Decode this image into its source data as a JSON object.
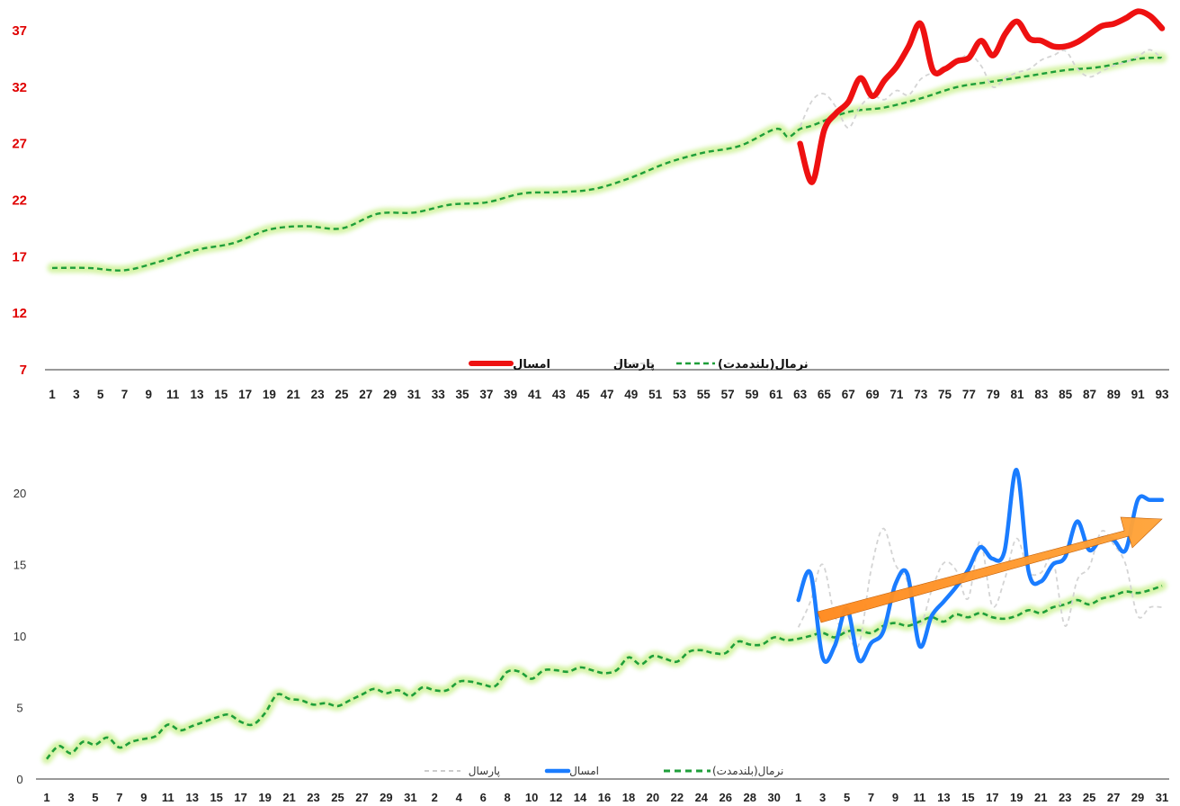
{
  "chart_data": [
    {
      "type": "line",
      "ylim": [
        7,
        37
      ],
      "yticks": [
        "7",
        "12",
        "17",
        "22",
        "27",
        "32",
        "37"
      ],
      "x_tick_labels": [
        "1",
        "3",
        "5",
        "7",
        "9",
        "11",
        "13",
        "15",
        "17",
        "19",
        "21",
        "23",
        "25",
        "27",
        "29",
        "31",
        "33",
        "35",
        "37",
        "39",
        "41",
        "43",
        "45",
        "47",
        "49",
        "51",
        "53",
        "55",
        "57",
        "59",
        "61",
        "63",
        "65",
        "67",
        "69",
        "71",
        "73",
        "75",
        "77",
        "79",
        "81",
        "83",
        "85",
        "87",
        "89",
        "91",
        "93"
      ],
      "legend_position": "bottom-center",
      "series": [
        {
          "name": "نرمال(بلندمدت)",
          "color": "#1e9e3a",
          "style": "dashed-glow",
          "x": [
            1,
            4,
            7,
            10,
            13,
            16,
            19,
            22,
            25,
            28,
            31,
            34,
            37,
            40,
            43,
            46,
            49,
            52,
            55,
            58,
            61,
            62,
            63,
            64,
            67,
            70,
            73,
            76,
            79,
            82,
            85,
            88,
            91,
            93
          ],
          "values": [
            16.0,
            16.0,
            15.8,
            16.6,
            17.6,
            18.2,
            19.4,
            19.7,
            19.5,
            20.8,
            20.9,
            21.6,
            21.8,
            22.6,
            22.7,
            23.0,
            24.0,
            25.3,
            26.2,
            26.8,
            28.3,
            27.6,
            28.3,
            28.6,
            29.8,
            30.2,
            31.0,
            32.0,
            32.5,
            33.0,
            33.5,
            33.8,
            34.5,
            34.6
          ]
        },
        {
          "name": "پارسال",
          "color": "#d4d4d4",
          "style": "dashed",
          "x": [
            63,
            64,
            65,
            66,
            67,
            68,
            69,
            70,
            71,
            72,
            73,
            74,
            75,
            76,
            77,
            78,
            79,
            80,
            81,
            82,
            83,
            84,
            85,
            86,
            87,
            88,
            89,
            90,
            91,
            92,
            93
          ],
          "values": [
            28.5,
            30.8,
            31.4,
            30.2,
            28.4,
            30.3,
            31.2,
            30.9,
            31.7,
            31.3,
            32.7,
            33.3,
            33.8,
            34.2,
            34.9,
            33.9,
            32.0,
            32.8,
            33.3,
            33.6,
            34.4,
            34.8,
            35.2,
            33.6,
            32.9,
            33.4,
            33.9,
            34.2,
            34.7,
            35.3,
            34.5
          ]
        },
        {
          "name": "امسال",
          "color": "#ee1111",
          "style": "solid-thick",
          "x": [
            63,
            64,
            65,
            66,
            67,
            68,
            69,
            70,
            71,
            72,
            73,
            74,
            75,
            76,
            77,
            78,
            79,
            80,
            81,
            82,
            83,
            84,
            85,
            86,
            87,
            88,
            89,
            90,
            91,
            92,
            93
          ],
          "values": [
            27.0,
            23.6,
            28.2,
            29.7,
            30.7,
            32.8,
            31.2,
            32.6,
            33.8,
            35.6,
            37.6,
            33.5,
            33.6,
            34.3,
            34.6,
            36.1,
            34.8,
            36.7,
            37.8,
            36.3,
            36.1,
            35.6,
            35.6,
            36.0,
            36.7,
            37.4,
            37.6,
            38.1,
            38.7,
            38.3,
            37.2
          ]
        }
      ]
    },
    {
      "type": "line",
      "ylim": [
        0,
        22
      ],
      "yticks": [
        "0",
        "5",
        "10",
        "15",
        "20"
      ],
      "x_tick_labels": [
        "1",
        "3",
        "5",
        "7",
        "9",
        "11",
        "13",
        "15",
        "17",
        "19",
        "21",
        "23",
        "25",
        "27",
        "29",
        "31",
        "2",
        "4",
        "6",
        "8",
        "10",
        "12",
        "14",
        "16",
        "18",
        "20",
        "22",
        "24",
        "26",
        "28",
        "30",
        "1",
        "3",
        "5",
        "7",
        "9",
        "11",
        "13",
        "15",
        "17",
        "19",
        "21",
        "23",
        "25",
        "27",
        "29",
        "31"
      ],
      "legend_position": "bottom-center",
      "annotation": "orange upward trend arrow over امسال series",
      "series": [
        {
          "name": "نرمال(بلندمدت)",
          "color": "#1e9e3a",
          "style": "dashed-glow",
          "x": [
            1,
            2,
            3,
            4,
            5,
            6,
            7,
            8,
            9,
            10,
            11,
            12,
            13,
            14,
            15,
            16,
            17,
            18,
            19,
            20,
            21,
            22,
            23,
            24,
            25,
            26,
            27,
            28,
            29,
            30,
            31,
            32,
            33,
            34,
            35,
            36,
            37,
            38,
            39,
            40,
            41,
            42,
            43,
            44,
            45,
            46,
            47,
            48,
            49,
            50,
            51,
            52,
            53,
            54,
            55,
            56,
            57,
            58,
            59,
            60,
            61,
            62,
            63,
            64,
            65,
            66,
            67,
            68,
            69,
            70,
            71,
            72,
            73,
            74,
            75,
            76,
            77,
            78,
            79,
            80,
            81,
            82,
            83,
            84,
            85,
            86,
            87,
            88,
            89,
            90,
            91,
            92,
            93
          ],
          "values": [
            1.4,
            2.3,
            1.8,
            2.6,
            2.4,
            2.9,
            2.2,
            2.6,
            2.8,
            3.0,
            3.8,
            3.4,
            3.7,
            4.0,
            4.3,
            4.5,
            4.0,
            3.8,
            4.6,
            5.9,
            5.6,
            5.5,
            5.2,
            5.3,
            5.1,
            5.5,
            5.9,
            6.3,
            6.0,
            6.2,
            5.8,
            6.4,
            6.2,
            6.2,
            6.8,
            6.8,
            6.6,
            6.5,
            7.5,
            7.5,
            7.0,
            7.6,
            7.6,
            7.5,
            7.8,
            7.6,
            7.4,
            7.6,
            8.5,
            8.0,
            8.6,
            8.4,
            8.2,
            8.9,
            9.0,
            8.8,
            8.8,
            9.6,
            9.4,
            9.4,
            9.9,
            9.7,
            9.8,
            10.0,
            10.2,
            9.9,
            10.3,
            10.4,
            10.2,
            10.7,
            10.9,
            10.7,
            11.0,
            11.3,
            11.0,
            11.5,
            11.3,
            11.6,
            11.3,
            11.2,
            11.4,
            11.8,
            11.6,
            12.0,
            12.2,
            12.5,
            12.2,
            12.6,
            12.8,
            13.1,
            13.0,
            13.2,
            13.5
          ]
        },
        {
          "name": "پارسال",
          "color": "#d4d4d4",
          "style": "dashed",
          "x": [
            63,
            64,
            65,
            66,
            67,
            68,
            69,
            70,
            71,
            72,
            73,
            74,
            75,
            76,
            77,
            78,
            79,
            80,
            81,
            82,
            83,
            84,
            85,
            86,
            87,
            88,
            89,
            90,
            91,
            92,
            93
          ],
          "values": [
            10.6,
            12.4,
            15.0,
            11.4,
            10.2,
            9.4,
            14.6,
            17.5,
            15.0,
            13.8,
            10.8,
            13.2,
            15.1,
            14.6,
            12.6,
            16.6,
            12.1,
            13.9,
            16.8,
            14.5,
            14.4,
            15.3,
            10.7,
            13.9,
            14.8,
            17.3,
            16.4,
            15.0,
            11.4,
            12.0,
            12.0
          ]
        },
        {
          "name": "امسال",
          "color": "#1a7cff",
          "style": "solid-thick",
          "x": [
            63,
            64,
            65,
            66,
            67,
            68,
            69,
            70,
            71,
            72,
            73,
            74,
            75,
            76,
            77,
            78,
            79,
            80,
            81,
            82,
            83,
            84,
            85,
            86,
            87,
            88,
            89,
            90,
            91,
            92,
            93
          ],
          "values": [
            12.5,
            14.4,
            8.5,
            9.3,
            11.9,
            8.3,
            9.5,
            10.3,
            13.6,
            14.3,
            9.3,
            11.4,
            12.4,
            13.4,
            14.6,
            16.2,
            15.4,
            15.9,
            21.6,
            14.5,
            13.8,
            15.0,
            15.5,
            18.0,
            16.0,
            16.8,
            16.7,
            16.0,
            19.5,
            19.5,
            19.5
          ]
        }
      ]
    }
  ]
}
